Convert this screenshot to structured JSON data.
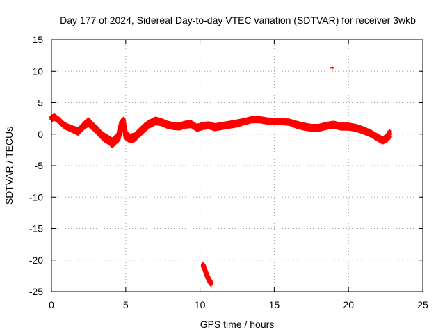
{
  "chart_data": {
    "type": "scatter",
    "title": "Day 177 of 2024, Sidereal Day-to-day VTEC variation (SDTVAR) for receiver 3wkb",
    "xlabel": "GPS time / hours",
    "ylabel": "SDTVAR / TECUs",
    "xlim": [
      0,
      25
    ],
    "ylim": [
      -25,
      15
    ],
    "x_ticks": [
      0,
      5,
      10,
      15,
      20,
      25
    ],
    "y_ticks": [
      -25,
      -20,
      -15,
      -10,
      -5,
      0,
      5,
      10,
      15
    ],
    "grid": true,
    "marker": "+",
    "series_color": "#ff0000",
    "series": [
      {
        "name": "main-band",
        "x": [
          0.0,
          0.2,
          0.5,
          0.8,
          1.0,
          1.3,
          1.6,
          1.8,
          2.0,
          2.3,
          2.5,
          2.7,
          3.0,
          3.3,
          3.6,
          3.9,
          4.1,
          4.3,
          4.5,
          4.7,
          4.85,
          5.0,
          5.3,
          5.6,
          6.0,
          6.3,
          6.6,
          7.0,
          7.4,
          7.8,
          8.2,
          8.6,
          9.0,
          9.4,
          9.8,
          10.2,
          10.6,
          11.0,
          11.5,
          12.0,
          12.5,
          13.0,
          13.5,
          14.0,
          14.5,
          15.0,
          15.5,
          16.0,
          16.5,
          17.0,
          17.5,
          18.0,
          18.5,
          19.0,
          19.5,
          20.0,
          20.5,
          21.0,
          21.5,
          22.0,
          22.3,
          22.6,
          22.8
        ],
        "y": [
          2.5,
          2.7,
          2.2,
          1.5,
          1.2,
          0.9,
          0.6,
          0.4,
          0.9,
          1.6,
          1.9,
          1.4,
          0.8,
          0.0,
          -0.6,
          -1.0,
          -1.4,
          -0.9,
          -0.5,
          1.4,
          1.9,
          -0.2,
          -0.7,
          -0.5,
          0.4,
          1.1,
          1.6,
          2.1,
          1.9,
          1.5,
          1.3,
          1.2,
          1.5,
          1.6,
          1.0,
          1.3,
          1.4,
          1.1,
          1.3,
          1.5,
          1.7,
          2.0,
          2.3,
          2.3,
          2.1,
          2.0,
          2.0,
          1.9,
          1.5,
          1.2,
          1.0,
          1.0,
          1.3,
          1.5,
          1.2,
          1.2,
          1.0,
          0.6,
          0.1,
          -0.6,
          -1.0,
          -0.6,
          0.1
        ],
        "band_half_width": [
          0.4,
          0.4,
          0.4,
          0.4,
          0.4,
          0.4,
          0.5,
          0.5,
          0.5,
          0.6,
          0.7,
          0.6,
          0.6,
          0.6,
          0.7,
          0.7,
          0.8,
          0.8,
          0.8,
          0.9,
          0.9,
          0.8,
          0.7,
          0.7,
          0.7,
          0.7,
          0.6,
          0.6,
          0.5,
          0.5,
          0.5,
          0.5,
          0.5,
          0.5,
          0.5,
          0.5,
          0.5,
          0.5,
          0.5,
          0.5,
          0.5,
          0.4,
          0.4,
          0.4,
          0.4,
          0.4,
          0.4,
          0.4,
          0.5,
          0.5,
          0.5,
          0.5,
          0.5,
          0.5,
          0.5,
          0.5,
          0.5,
          0.5,
          0.5,
          0.5,
          0.5,
          0.6,
          0.8
        ]
      },
      {
        "name": "negative-excursion",
        "x": [
          10.2,
          10.3,
          10.4,
          10.5,
          10.6,
          10.7,
          10.75
        ],
        "y": [
          -20.8,
          -21.3,
          -22.0,
          -22.6,
          -23.1,
          -23.5,
          -23.8
        ],
        "band_half_width": [
          0.3,
          0.3,
          0.3,
          0.3,
          0.3,
          0.3,
          0.3
        ]
      },
      {
        "name": "outlier",
        "x": [
          18.9
        ],
        "y": [
          10.5
        ],
        "band_half_width": [
          0
        ]
      }
    ]
  }
}
